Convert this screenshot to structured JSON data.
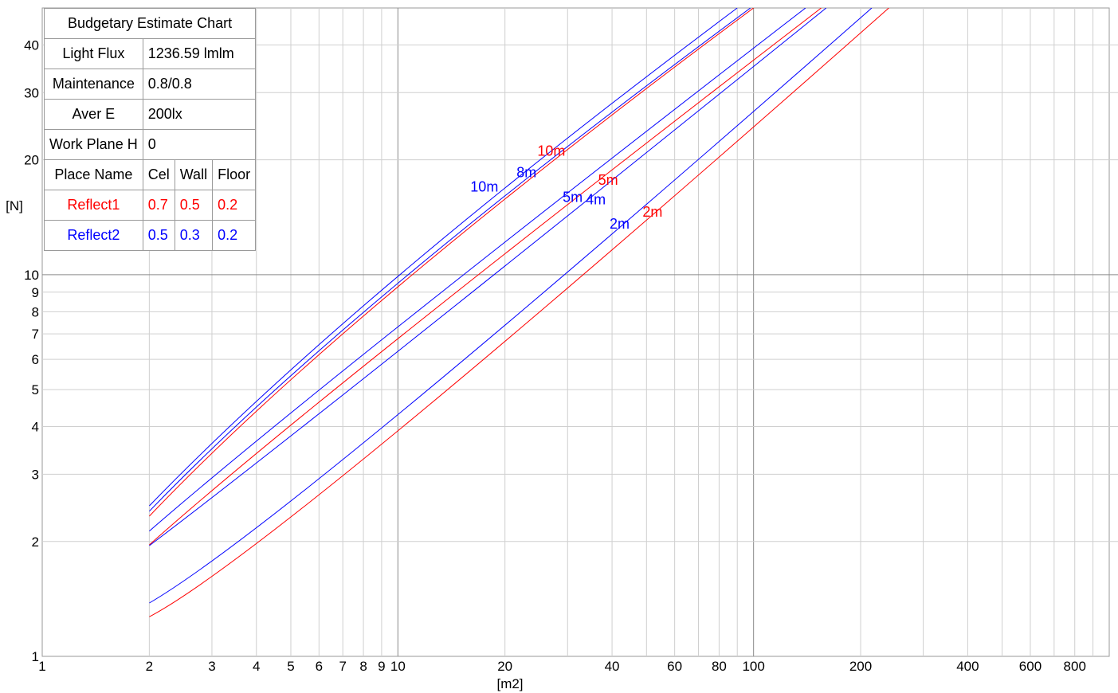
{
  "table": {
    "title": "Budgetary Estimate Chart",
    "rows": [
      {
        "label": "Light Flux",
        "value": "1236.59 lmlm"
      },
      {
        "label": "Maintenance",
        "value": "0.8/0.8"
      },
      {
        "label": "Aver E",
        "value": "200lx"
      },
      {
        "label": "Work Plane H",
        "value": "0"
      }
    ],
    "header": {
      "name": "Place Name",
      "c1": "Cel",
      "c2": "Wall",
      "c3": "Floor"
    },
    "reflect1": {
      "name": "Reflect1",
      "c1": "0.7",
      "c2": "0.5",
      "c3": "0.2",
      "color": "#ff0000"
    },
    "reflect2": {
      "name": "Reflect2",
      "c1": "0.5",
      "c2": "0.3",
      "c3": "0.2",
      "color": "#0000ff"
    }
  },
  "chart_data": {
    "type": "line",
    "x_scale": "log",
    "y_scale": "log",
    "xlabel": "[m2]",
    "ylabel": "[N]",
    "xlim": [
      1,
      1000
    ],
    "ylim": [
      1,
      50
    ],
    "grid": true,
    "x_tick_labels": [
      {
        "v": 1,
        "t": "1"
      },
      {
        "v": 2,
        "t": "2"
      },
      {
        "v": 3,
        "t": "3"
      },
      {
        "v": 4,
        "t": "4"
      },
      {
        "v": 5,
        "t": "5"
      },
      {
        "v": 6,
        "t": "6"
      },
      {
        "v": 7,
        "t": "7"
      },
      {
        "v": 8,
        "t": "8"
      },
      {
        "v": 9,
        "t": "9"
      },
      {
        "v": 10,
        "t": "10"
      },
      {
        "v": 20,
        "t": "20"
      },
      {
        "v": 40,
        "t": "40"
      },
      {
        "v": 60,
        "t": "60"
      },
      {
        "v": 80,
        "t": "80"
      },
      {
        "v": 100,
        "t": "100"
      },
      {
        "v": 200,
        "t": "200"
      },
      {
        "v": 400,
        "t": "400"
      },
      {
        "v": 600,
        "t": "600"
      },
      {
        "v": 800,
        "t": "800"
      }
    ],
    "y_tick_labels": [
      {
        "v": 1,
        "t": "1"
      },
      {
        "v": 2,
        "t": "2"
      },
      {
        "v": 3,
        "t": "3"
      },
      {
        "v": 4,
        "t": "4"
      },
      {
        "v": 5,
        "t": "5"
      },
      {
        "v": 6,
        "t": "6"
      },
      {
        "v": 7,
        "t": "7"
      },
      {
        "v": 8,
        "t": "8"
      },
      {
        "v": 9,
        "t": "9"
      },
      {
        "v": 10,
        "t": "10"
      },
      {
        "v": 20,
        "t": "20"
      },
      {
        "v": 30,
        "t": "30"
      },
      {
        "v": 40,
        "t": "40"
      }
    ],
    "series": [
      {
        "name": "10m",
        "color": "#0000ff",
        "label_at": [
          17.5,
          16.5
        ],
        "points": [
          [
            2,
            2.48
          ],
          [
            10,
            9.9
          ],
          [
            90,
            50
          ]
        ]
      },
      {
        "name": "10m",
        "color": "#ff0000",
        "label_at": [
          27,
          20.5
        ],
        "points": [
          [
            2,
            2.33
          ],
          [
            10,
            9.3
          ],
          [
            100,
            50
          ]
        ]
      },
      {
        "name": "8m",
        "color": "#0000ff",
        "label_at": [
          23,
          18
        ],
        "points": [
          [
            2,
            2.4
          ],
          [
            10,
            9.5
          ],
          [
            98,
            50
          ]
        ]
      },
      {
        "name": "5m",
        "color": "#0000ff",
        "label_at": [
          31,
          15.5
        ],
        "points": [
          [
            2,
            2.13
          ],
          [
            10,
            7.3
          ],
          [
            140,
            50
          ]
        ]
      },
      {
        "name": "5m",
        "color": "#ff0000",
        "label_at": [
          39,
          17.2
        ],
        "points": [
          [
            2,
            1.96
          ],
          [
            10,
            6.8
          ],
          [
            155,
            50
          ]
        ]
      },
      {
        "name": "4m",
        "color": "#0000ff",
        "label_at": [
          36,
          15.3
        ],
        "points": [
          [
            2,
            1.95
          ],
          [
            10,
            6.3
          ],
          [
            160,
            50
          ]
        ]
      },
      {
        "name": "2m",
        "color": "#0000ff",
        "label_at": [
          42,
          13.2
        ],
        "points": [
          [
            2,
            1.38
          ],
          [
            10,
            4.3
          ],
          [
            215,
            50
          ]
        ]
      },
      {
        "name": "2m",
        "color": "#ff0000",
        "label_at": [
          52,
          14.2
        ],
        "points": [
          [
            2,
            1.27
          ],
          [
            10,
            3.9
          ],
          [
            240,
            50
          ]
        ]
      }
    ]
  }
}
